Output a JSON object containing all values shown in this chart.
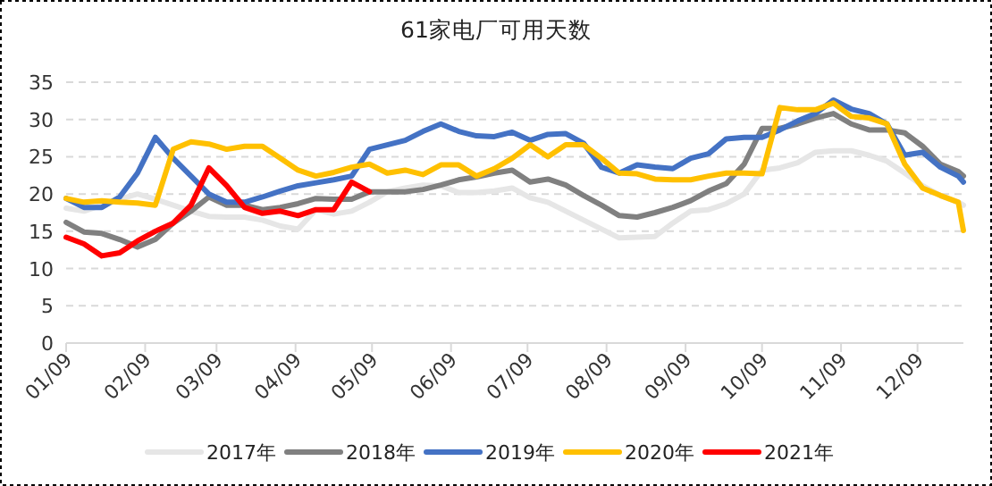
{
  "chart_data": {
    "type": "line",
    "title": "61家电厂可用天数",
    "x": [
      "--01-09",
      "--01-16",
      "--01-23",
      "--01-30",
      "--02-06",
      "--02-13",
      "--02-20",
      "--02-27",
      "--03-06",
      "--03-13",
      "--03-20",
      "--03-27",
      "--04-03",
      "--04-10",
      "--04-17",
      "--04-24",
      "--05-01",
      "--05-08",
      "--05-15",
      "--05-22",
      "--05-29",
      "--06-05",
      "--06-12",
      "--06-19",
      "--06-26",
      "--07-03",
      "--07-10",
      "--07-17",
      "--07-24",
      "--07-31",
      "--08-07",
      "--08-14",
      "--08-21",
      "--08-28",
      "--09-04",
      "--09-11",
      "--09-18",
      "--09-25",
      "--10-02",
      "--10-09",
      "--10-16",
      "--10-23",
      "--10-30",
      "--11-06",
      "--11-13",
      "--11-20",
      "--11-27",
      "--12-04",
      "--12-11",
      "--12-18",
      "--12-25",
      "--12-27"
    ],
    "series": [
      {
        "name": "2017年",
        "color": "#e6e6e6",
        "values": [
          18.1,
          17.7,
          18.5,
          19.3,
          20,
          19.3,
          18.5,
          17.7,
          17,
          16.9,
          16.9,
          16.5,
          15.7,
          15.3,
          17.9,
          17.3,
          17.7,
          18.9,
          20.3,
          20.8,
          21.2,
          21.1,
          20.2,
          20.2,
          20.4,
          20.8,
          19.5,
          18.9,
          17.7,
          16.5,
          15.3,
          14.1,
          14.2,
          14.3,
          16.1,
          17.7,
          17.9,
          18.7,
          20,
          23.2,
          23.5,
          24.2,
          25.6,
          25.8,
          25.8,
          25.2,
          24.4,
          22.8,
          21.1,
          19.8,
          18.9,
          18.5
        ]
      },
      {
        "name": "2018年",
        "color": "#808080",
        "values": [
          16.2,
          14.9,
          14.7,
          13.9,
          12.9,
          13.9,
          16.1,
          17.7,
          19.6,
          18.5,
          18.5,
          17.9,
          18.2,
          18.7,
          19.4,
          19.3,
          19.3,
          20.3,
          20.3,
          20.3,
          20.6,
          21.2,
          21.9,
          22.3,
          22.8,
          23.2,
          21.6,
          22,
          21.2,
          19.8,
          18.5,
          17.1,
          16.9,
          17.5,
          18.2,
          19.1,
          20.4,
          21.4,
          24,
          28.8,
          28.8,
          29.4,
          30.2,
          30.8,
          29.4,
          28.6,
          28.6,
          28.2,
          26.4,
          24,
          23,
          22.4
        ]
      },
      {
        "name": "2019年",
        "color": "#4472c4",
        "values": [
          19.4,
          18.2,
          18.2,
          19.6,
          22.8,
          27.6,
          24.8,
          22.4,
          20,
          18.9,
          18.9,
          19.6,
          20.4,
          21.1,
          21.5,
          21.9,
          22.4,
          26,
          26.6,
          27.2,
          28.4,
          29.4,
          28.4,
          27.8,
          27.7,
          28.3,
          27.2,
          28,
          28.1,
          26.8,
          23.6,
          22.8,
          23.9,
          23.6,
          23.4,
          24.8,
          25.4,
          27.4,
          27.6,
          27.6,
          28.6,
          29.8,
          30.8,
          32.6,
          31.4,
          30.8,
          29.4,
          25.2,
          25.6,
          23.6,
          22.4,
          21.6
        ]
      },
      {
        "name": "2020年",
        "color": "#ffc000",
        "values": [
          19.4,
          18.9,
          19.1,
          18.9,
          18.8,
          18.5,
          26,
          27,
          26.7,
          26,
          26.4,
          26.4,
          24.8,
          23.2,
          22.4,
          22.9,
          23.6,
          24,
          22.8,
          23.2,
          22.6,
          23.9,
          23.9,
          22.4,
          23.4,
          24.8,
          26.6,
          25,
          26.6,
          26.6,
          24.8,
          22.8,
          22.7,
          22,
          21.9,
          21.9,
          22.4,
          22.8,
          22.8,
          22.7,
          31.6,
          31.3,
          31.3,
          32.2,
          30.4,
          30.2,
          29.4,
          24,
          20.8,
          19.8,
          18.9,
          15.1
        ]
      },
      {
        "name": "2021年",
        "color": "#ff0000",
        "values": [
          14.2,
          13.3,
          11.7,
          12.1,
          13.7,
          15,
          16.1,
          18.5,
          23.5,
          21.1,
          18.2,
          17.4,
          17.7,
          17.1,
          17.9,
          17.9,
          21.6,
          20.3,
          null,
          null,
          null,
          null,
          null,
          null,
          null,
          null,
          null,
          null,
          null,
          null,
          null,
          null,
          null,
          null,
          null,
          null,
          null,
          null,
          null,
          null,
          null,
          null,
          null,
          null,
          null,
          null,
          null,
          null,
          null,
          null,
          null,
          null
        ]
      }
    ],
    "xlim": [
      "--01-09",
      "--12-27"
    ],
    "xticks": [
      {
        "value": "--01-09",
        "label": "01/09"
      },
      {
        "value": "--02-09",
        "label": "02/09"
      },
      {
        "value": "--03-09",
        "label": "03/09"
      },
      {
        "value": "--04-09",
        "label": "04/09"
      },
      {
        "value": "--05-09",
        "label": "05/09"
      },
      {
        "value": "--06-09",
        "label": "06/09"
      },
      {
        "value": "--07-09",
        "label": "07/09"
      },
      {
        "value": "--08-09",
        "label": "08/09"
      },
      {
        "value": "--09-09",
        "label": "09/09"
      },
      {
        "value": "--10-09",
        "label": "10/09"
      },
      {
        "value": "--11-09",
        "label": "11/09"
      },
      {
        "value": "--12-09",
        "label": "12/09"
      }
    ],
    "ylim": [
      0,
      35
    ],
    "yticks": [
      0,
      5,
      10,
      15,
      20,
      25,
      30,
      35
    ],
    "grid": "y",
    "legend": "bottom",
    "marker": "none",
    "line_style": "solid"
  }
}
